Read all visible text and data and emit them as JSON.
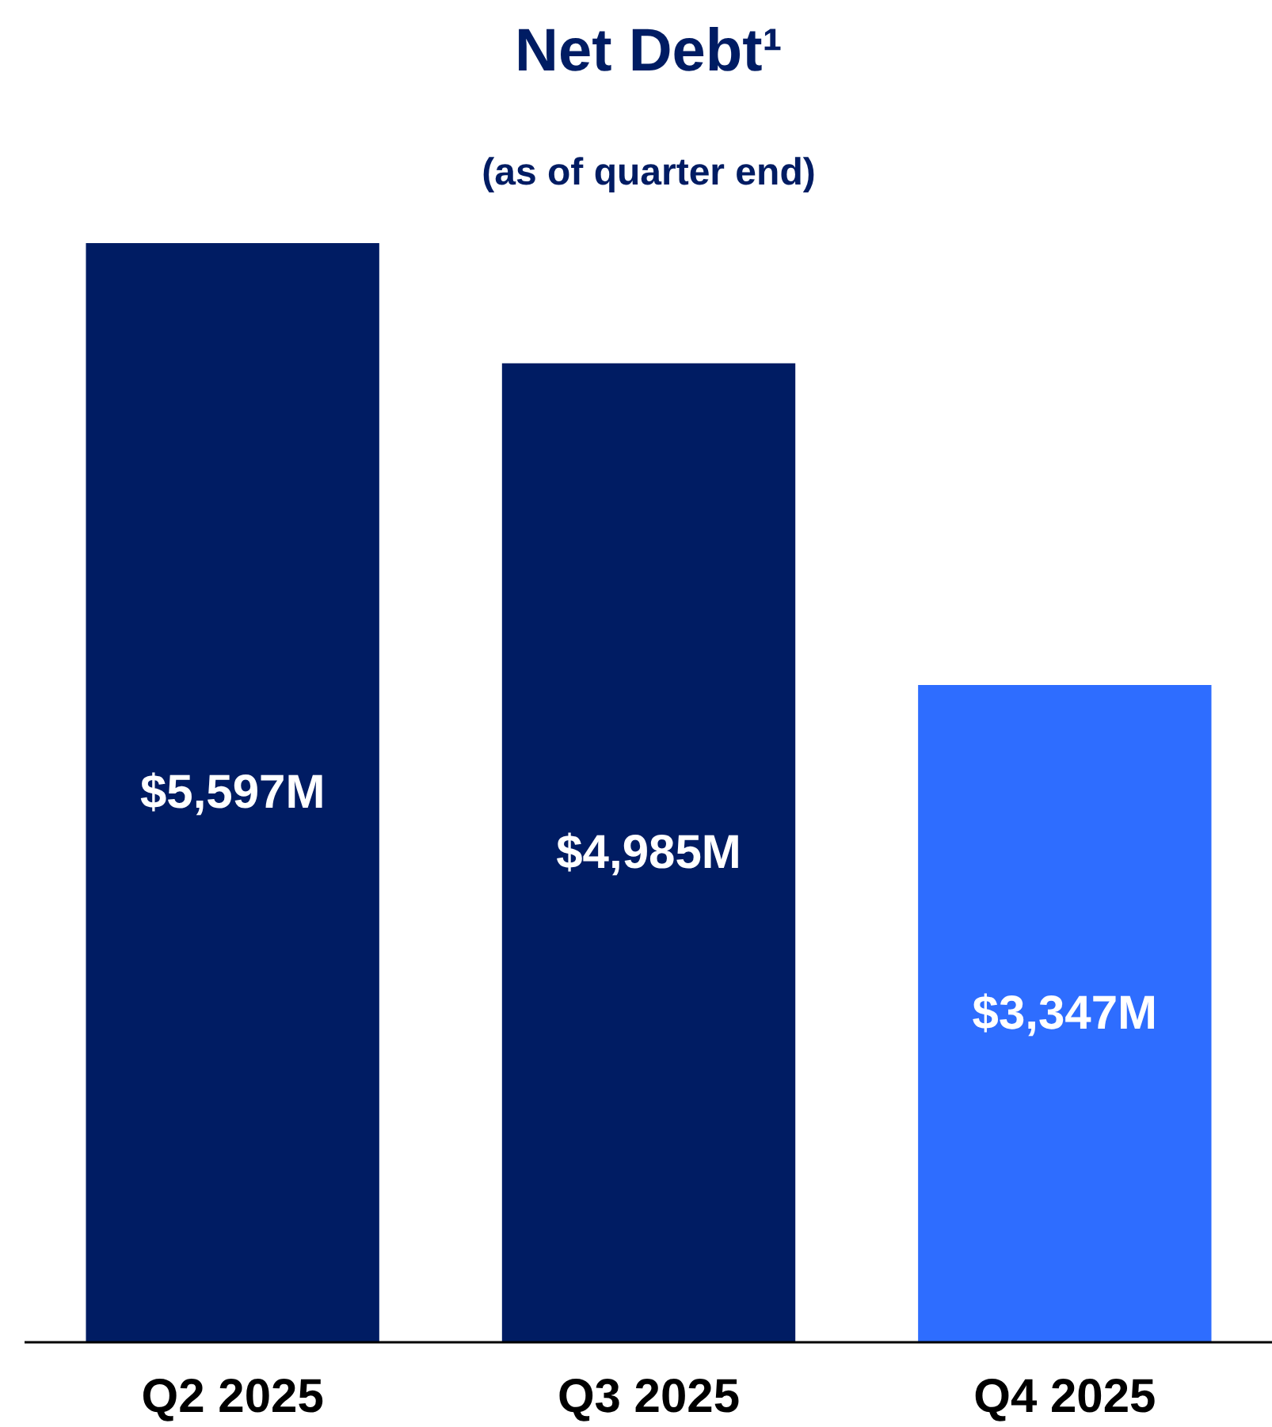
{
  "chart_data": {
    "type": "bar",
    "title": "Net Debt¹",
    "subtitle": "(as of quarter end)",
    "categories": [
      "Q2 2025",
      "Q3 2025",
      "Q4 2025"
    ],
    "values": [
      5597,
      4985,
      3347
    ],
    "colors": [
      "#001c63",
      "#001c63",
      "#2e6dff"
    ],
    "value_labels": [
      "$5,597M",
      "$4,985M",
      "$3,347M"
    ],
    "grid": false
  }
}
